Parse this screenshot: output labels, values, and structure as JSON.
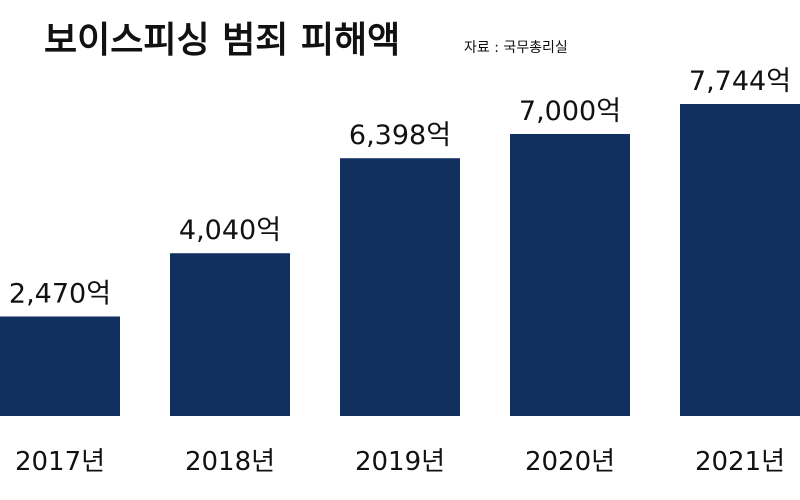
{
  "chart_data": {
    "type": "bar",
    "title": "보이스피싱 범죄 피해액",
    "source": "자료 : 국무총리실",
    "categories": [
      "2017년",
      "2018년",
      "2019년",
      "2020년",
      "2021년"
    ],
    "values": [
      2470,
      4040,
      6398,
      7000,
      7744
    ],
    "value_labels": [
      "2,470억",
      "4,040억",
      "6,398억",
      "7,000억",
      "7,744억"
    ],
    "xlabel": "",
    "ylabel": "",
    "ylim": [
      0,
      8000
    ],
    "grid": false,
    "legend": "none",
    "bar_color": "#12305f"
  }
}
